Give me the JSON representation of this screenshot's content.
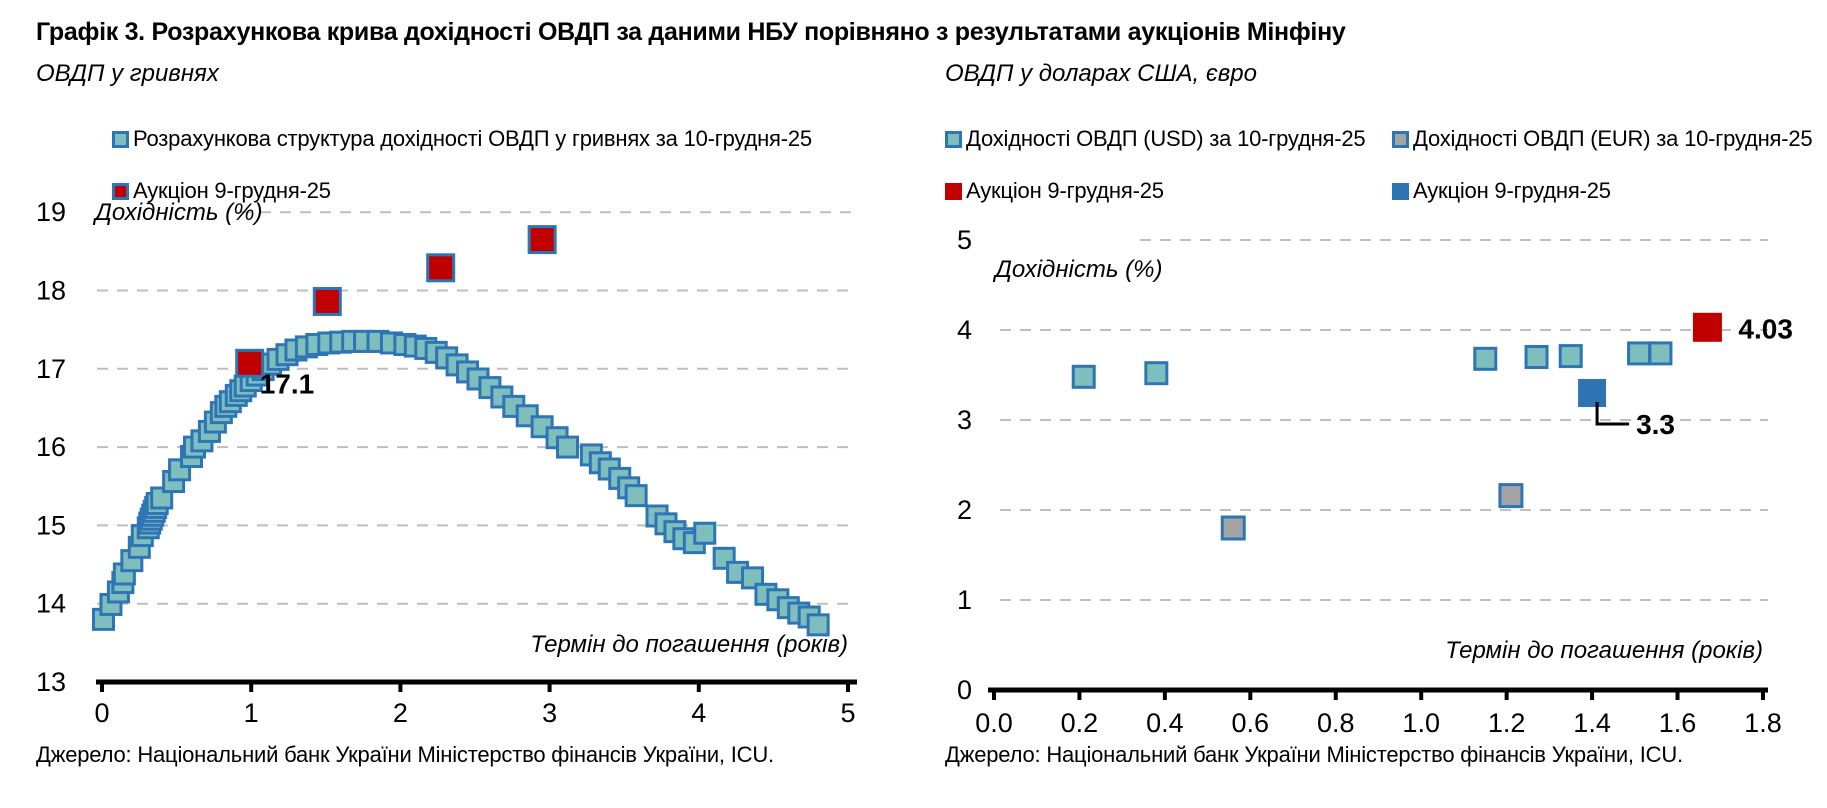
{
  "page": {
    "title": "Графік 3. Розрахункова крива дохідності ОВДП за даними НБУ порівняно з результатами аукціонів Мінфіну"
  },
  "left": {
    "subtitle": "ОВДП у гривнях",
    "source": "Джерело: Національний банк України Міністерство фінансів України, ICU."
  },
  "right": {
    "subtitle": "ОВДП у доларах США, євро",
    "source": "Джерело: Національний банк України Міністерство фінансів України, ICU."
  },
  "chart_data": [
    {
      "type": "scatter",
      "title": "ОВДП у гривнях",
      "xlabel": "Термін до погашення (років)",
      "ylabel": "Дохідність (%)",
      "xlim": [
        0,
        5
      ],
      "ylim": [
        13,
        19
      ],
      "x_ticks": [
        "0",
        "1",
        "2",
        "3",
        "4",
        "5"
      ],
      "y_ticks": [
        "13",
        "14",
        "15",
        "16",
        "17",
        "18",
        "19"
      ],
      "grid": "dashed-horizontal",
      "legend_position": "top",
      "series": [
        {
          "name": "Розрахункова структура дохідності ОВДП у гривнях за 10-грудня-25",
          "marker": "square",
          "color": "#7EBEBD",
          "border": "#2E75B6",
          "points": [
            [
              0.01,
              13.8
            ],
            [
              0.06,
              13.99
            ],
            [
              0.11,
              14.15
            ],
            [
              0.14,
              14.27
            ],
            [
              0.15,
              14.38
            ],
            [
              0.2,
              14.55
            ],
            [
              0.25,
              14.72
            ],
            [
              0.27,
              14.87
            ],
            [
              0.31,
              14.97
            ],
            [
              0.32,
              15.03
            ],
            [
              0.33,
              15.08
            ],
            [
              0.34,
              15.13
            ],
            [
              0.35,
              15.18
            ],
            [
              0.36,
              15.23
            ],
            [
              0.37,
              15.28
            ],
            [
              0.4,
              15.35
            ],
            [
              0.48,
              15.56
            ],
            [
              0.52,
              15.71
            ],
            [
              0.6,
              15.88
            ],
            [
              0.62,
              16.0
            ],
            [
              0.67,
              16.08
            ],
            [
              0.72,
              16.2
            ],
            [
              0.76,
              16.32
            ],
            [
              0.8,
              16.44
            ],
            [
              0.83,
              16.52
            ],
            [
              0.86,
              16.58
            ],
            [
              0.9,
              16.66
            ],
            [
              0.93,
              16.72
            ],
            [
              0.96,
              16.78
            ],
            [
              1.0,
              16.85
            ],
            [
              1.04,
              16.92
            ],
            [
              1.08,
              16.99
            ],
            [
              1.13,
              17.06
            ],
            [
              1.18,
              17.12
            ],
            [
              1.24,
              17.18
            ],
            [
              1.3,
              17.24
            ],
            [
              1.37,
              17.28
            ],
            [
              1.44,
              17.31
            ],
            [
              1.52,
              17.33
            ],
            [
              1.6,
              17.34
            ],
            [
              1.68,
              17.35
            ],
            [
              1.76,
              17.35
            ],
            [
              1.85,
              17.35
            ],
            [
              1.94,
              17.33
            ],
            [
              2.03,
              17.31
            ],
            [
              2.1,
              17.29
            ],
            [
              2.17,
              17.26
            ],
            [
              2.24,
              17.21
            ],
            [
              2.31,
              17.14
            ],
            [
              2.38,
              17.05
            ],
            [
              2.45,
              16.96
            ],
            [
              2.52,
              16.87
            ],
            [
              2.6,
              16.76
            ],
            [
              2.68,
              16.64
            ],
            [
              2.76,
              16.52
            ],
            [
              2.85,
              16.4
            ],
            [
              2.95,
              16.26
            ],
            [
              3.05,
              16.12
            ],
            [
              3.12,
              16.0
            ],
            [
              3.28,
              15.9
            ],
            [
              3.34,
              15.8
            ],
            [
              3.4,
              15.72
            ],
            [
              3.47,
              15.6
            ],
            [
              3.53,
              15.48
            ],
            [
              3.58,
              15.38
            ],
            [
              3.72,
              15.12
            ],
            [
              3.78,
              15.02
            ],
            [
              3.84,
              14.92
            ],
            [
              3.9,
              14.83
            ],
            [
              3.97,
              14.78
            ],
            [
              4.04,
              14.9
            ],
            [
              4.17,
              14.58
            ],
            [
              4.26,
              14.4
            ],
            [
              4.36,
              14.33
            ],
            [
              4.45,
              14.12
            ],
            [
              4.53,
              14.05
            ],
            [
              4.6,
              13.95
            ],
            [
              4.67,
              13.88
            ],
            [
              4.74,
              13.83
            ],
            [
              4.8,
              13.73
            ]
          ]
        },
        {
          "name": "Аукціон 9-грудня-25",
          "marker": "square",
          "color": "#C00000",
          "border": "#2E75B6",
          "points": [
            [
              0.99,
              17.07
            ],
            [
              1.51,
              17.86
            ],
            [
              2.27,
              18.29
            ],
            [
              2.95,
              18.65
            ]
          ]
        }
      ],
      "annotations": [
        {
          "text": "17.1",
          "x": 0.99,
          "y": 17.07
        }
      ]
    },
    {
      "type": "scatter",
      "title": "ОВДП у доларах США, євро",
      "xlabel": "Термін до погашення (років)",
      "ylabel": "Дохідність (%)",
      "xlim": [
        0,
        1.8
      ],
      "ylim": [
        0,
        5
      ],
      "x_ticks": [
        "0.0",
        "0.2",
        "0.4",
        "0.6",
        "0.8",
        "1.0",
        "1.2",
        "1.4",
        "1.6",
        "1.8"
      ],
      "y_ticks": [
        "0",
        "1",
        "2",
        "3",
        "4",
        "5"
      ],
      "grid": "dashed-horizontal",
      "legend_position": "top",
      "series": [
        {
          "name": "Дохідності ОВДП (USD) за 10-грудня-25",
          "marker": "square",
          "color": "#7EBEBD",
          "border": "#2E75B6",
          "points": [
            [
              0.21,
              3.48
            ],
            [
              0.38,
              3.52
            ],
            [
              1.15,
              3.68
            ],
            [
              1.27,
              3.7
            ],
            [
              1.35,
              3.71
            ],
            [
              1.51,
              3.74
            ],
            [
              1.56,
              3.74
            ]
          ]
        },
        {
          "name": "Дохідності ОВДП (EUR) за 10-грудня-25",
          "marker": "square",
          "color": "#A3A3A3",
          "border": "#2E75B6",
          "points": [
            [
              0.56,
              1.8
            ],
            [
              1.21,
              2.16
            ]
          ]
        },
        {
          "name": "Аукціон 9-грудня-25",
          "marker": "square",
          "color": "#C00000",
          "points": [
            [
              1.67,
              4.03
            ]
          ]
        },
        {
          "name": "Аукціон 9-грудня-25",
          "marker": "square",
          "color": "#2E74B5",
          "points": [
            [
              1.4,
              3.3
            ]
          ]
        }
      ],
      "annotations": [
        {
          "text": "4.03",
          "x": 1.67,
          "y": 4.03
        },
        {
          "text": "3.3",
          "x": 1.4,
          "y": 3.3,
          "leader": true
        }
      ]
    }
  ]
}
